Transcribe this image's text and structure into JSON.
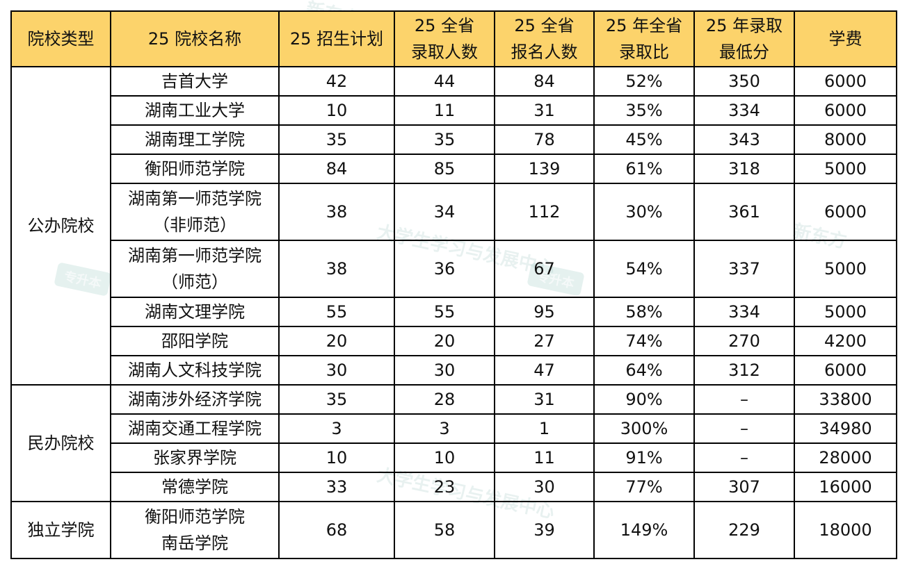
{
  "headers": [
    "院校类型",
    "25 院校名称",
    "25 招生计划",
    "25 全省\n录取人数",
    "25 全省\n报名人数",
    "25 年全省\n录取比",
    "25 年录取\n最低分",
    "学费"
  ],
  "groups": [
    {
      "type": "公办院校",
      "rows": [
        {
          "name": "吉首大学",
          "plan": "42",
          "admitted": "44",
          "applied": "84",
          "ratio": "52%",
          "min_score": "350",
          "fee": "6000"
        },
        {
          "name": "湖南工业大学",
          "plan": "10",
          "admitted": "11",
          "applied": "31",
          "ratio": "35%",
          "min_score": "334",
          "fee": "6000"
        },
        {
          "name": "湖南理工学院",
          "plan": "35",
          "admitted": "35",
          "applied": "78",
          "ratio": "45%",
          "min_score": "343",
          "fee": "8000"
        },
        {
          "name": "衡阳师范学院",
          "plan": "84",
          "admitted": "85",
          "applied": "139",
          "ratio": "61%",
          "min_score": "318",
          "fee": "5000"
        },
        {
          "name": "湖南第一师范学院\n（非师范）",
          "plan": "38",
          "admitted": "34",
          "applied": "112",
          "ratio": "30%",
          "min_score": "361",
          "fee": "6000"
        },
        {
          "name": "湖南第一师范学院\n（师范）",
          "plan": "38",
          "admitted": "36",
          "applied": "67",
          "ratio": "54%",
          "min_score": "337",
          "fee": "5000"
        },
        {
          "name": "湖南文理学院",
          "plan": "55",
          "admitted": "55",
          "applied": "95",
          "ratio": "58%",
          "min_score": "334",
          "fee": "5000"
        },
        {
          "name": "邵阳学院",
          "plan": "20",
          "admitted": "20",
          "applied": "27",
          "ratio": "74%",
          "min_score": "270",
          "fee": "4200"
        },
        {
          "name": "湖南人文科技学院",
          "plan": "30",
          "admitted": "30",
          "applied": "47",
          "ratio": "64%",
          "min_score": "312",
          "fee": "6000"
        }
      ]
    },
    {
      "type": "民办院校",
      "rows": [
        {
          "name": "湖南涉外经济学院",
          "plan": "35",
          "admitted": "28",
          "applied": "31",
          "ratio": "90%",
          "min_score": "–",
          "fee": "33800"
        },
        {
          "name": "湖南交通工程学院",
          "plan": "3",
          "admitted": "3",
          "applied": "1",
          "ratio": "300%",
          "min_score": "–",
          "fee": "34980"
        },
        {
          "name": "张家界学院",
          "plan": "10",
          "admitted": "10",
          "applied": "11",
          "ratio": "91%",
          "min_score": "–",
          "fee": "28000"
        },
        {
          "name": "常德学院",
          "plan": "33",
          "admitted": "23",
          "applied": "30",
          "ratio": "77%",
          "min_score": "307",
          "fee": "16000"
        }
      ]
    },
    {
      "type": "独立学院",
      "rows": [
        {
          "name": "衡阳师范学院\n南岳学院",
          "plan": "68",
          "admitted": "58",
          "applied": "39",
          "ratio": "149%",
          "min_score": "229",
          "fee": "18000"
        }
      ]
    }
  ],
  "colors": {
    "header_bg": "#fcd36b",
    "border": "#000000"
  },
  "watermark": {
    "brand": "新东方",
    "tagline": "大学生学习与发展中心",
    "badge": "专升本"
  }
}
